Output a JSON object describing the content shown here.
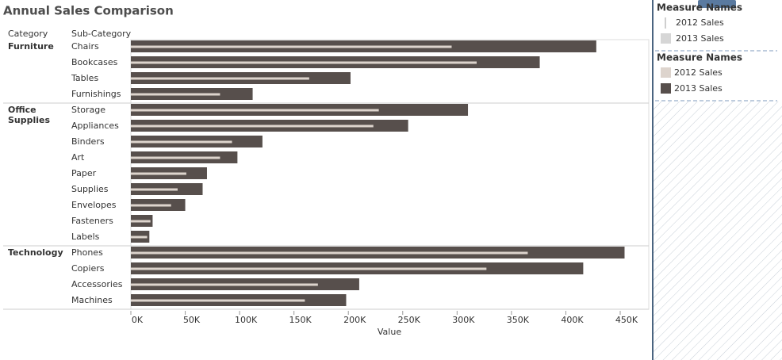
{
  "chart_data": {
    "type": "bar-in-bar",
    "title": "Annual Sales Comparison",
    "column_headers": [
      "Category",
      "Sub-Category"
    ],
    "groups": [
      {
        "name": "Furniture",
        "categories": [
          "Chairs",
          "Bookcases",
          "Tables",
          "Furnishings"
        ]
      },
      {
        "name": "Office Supplies",
        "categories": [
          "Storage",
          "Appliances",
          "Binders",
          "Art",
          "Paper",
          "Supplies",
          "Envelopes",
          "Fasteners",
          "Labels"
        ]
      },
      {
        "name": "Technology",
        "categories": [
          "Phones",
          "Copiers",
          "Accessories",
          "Machines"
        ]
      }
    ],
    "series": [
      {
        "name": "2013 Sales",
        "color": "#574f4c",
        "values": [
          428000,
          376000,
          202000,
          112000,
          310000,
          255000,
          121000,
          98000,
          70000,
          66000,
          50000,
          20000,
          17000,
          454000,
          416000,
          210000,
          198000
        ]
      },
      {
        "name": "2012 Sales",
        "color": "#ddd4cd",
        "values": [
          295000,
          318000,
          164000,
          82000,
          228000,
          223000,
          93000,
          82000,
          51000,
          43000,
          37000,
          18000,
          15000,
          365000,
          327000,
          172000,
          160000
        ]
      }
    ],
    "xlabel": "Value",
    "xlim": [
      0,
      475000
    ],
    "xticks": [
      {
        "value": 0,
        "label": "0K"
      },
      {
        "value": 50000,
        "label": "50K"
      },
      {
        "value": 100000,
        "label": "100K"
      },
      {
        "value": 150000,
        "label": "150K"
      },
      {
        "value": 200000,
        "label": "200K"
      },
      {
        "value": 250000,
        "label": "250K"
      },
      {
        "value": 300000,
        "label": "300K"
      },
      {
        "value": 350000,
        "label": "350K"
      },
      {
        "value": 400000,
        "label": "400K"
      },
      {
        "value": 450000,
        "label": "450K"
      }
    ],
    "legends": [
      {
        "title": "Measure Names",
        "kind": "size",
        "items": [
          {
            "label": "2012 Sales",
            "color": "#cfcfcf"
          },
          {
            "label": "2013 Sales",
            "color": "#d6d6d6"
          }
        ]
      },
      {
        "title": "Measure Names",
        "kind": "color",
        "items": [
          {
            "label": "2012 Sales",
            "color": "#ddd4cd"
          },
          {
            "label": "2013 Sales",
            "color": "#574f4c"
          }
        ]
      }
    ]
  }
}
